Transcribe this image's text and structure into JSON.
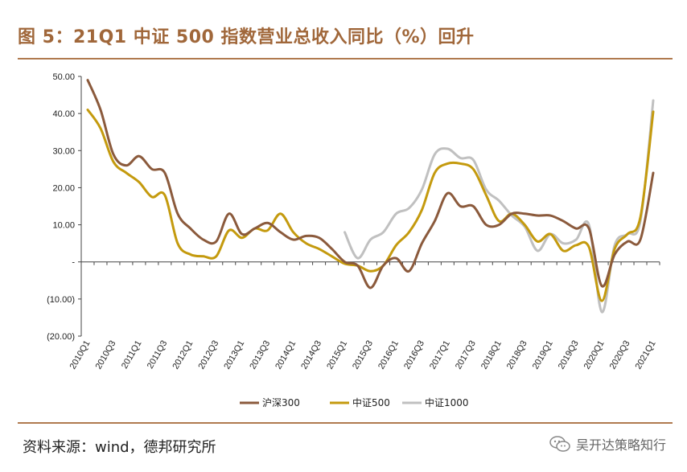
{
  "header": {
    "title": "图 5：21Q1 中证 500 指数营业总收入同比（%）回升"
  },
  "footer": {
    "source": "资料来源：wind，德邦研究所",
    "watermark": "吴开达策略知行"
  },
  "colors": {
    "hs300": "#8b5a3c",
    "zz500": "#c49a0e",
    "zz1000": "#c0c0c0",
    "accent": "#a0673a"
  },
  "chart_data": {
    "type": "line",
    "title": "",
    "xlabel": "",
    "ylabel": "",
    "ylim": [
      -20,
      50
    ],
    "yticks": [
      50,
      40,
      30,
      20,
      10,
      0,
      -10,
      -20
    ],
    "ytick_labels": [
      "50.00",
      "40.00",
      "30.00",
      "20.00",
      "10.00",
      "-",
      "(10.00)",
      "(20.00)"
    ],
    "categories": [
      "2010Q1",
      "2010Q2",
      "2010Q3",
      "2010Q4",
      "2011Q1",
      "2011Q2",
      "2011Q3",
      "2011Q4",
      "2012Q1",
      "2012Q2",
      "2012Q3",
      "2012Q4",
      "2013Q1",
      "2013Q2",
      "2013Q3",
      "2013Q4",
      "2014Q1",
      "2014Q2",
      "2014Q3",
      "2014Q4",
      "2015Q1",
      "2015Q2",
      "2015Q3",
      "2015Q4",
      "2016Q1",
      "2016Q2",
      "2016Q3",
      "2016Q4",
      "2017Q1",
      "2017Q2",
      "2017Q3",
      "2017Q4",
      "2018Q1",
      "2018Q2",
      "2018Q3",
      "2018Q4",
      "2019Q1",
      "2019Q2",
      "2019Q3",
      "2019Q4",
      "2020Q1",
      "2020Q2",
      "2020Q3",
      "2020Q4",
      "2021Q1"
    ],
    "x_tick_labels": [
      "2010Q1",
      "2010Q3",
      "2011Q1",
      "2011Q3",
      "2012Q1",
      "2012Q3",
      "2013Q1",
      "2013Q3",
      "2014Q1",
      "2014Q3",
      "2015Q1",
      "2015Q3",
      "2016Q1",
      "2016Q3",
      "2017Q1",
      "2017Q3",
      "2018Q1",
      "2018Q3",
      "2019Q1",
      "2019Q3",
      "2020Q1",
      "2020Q3",
      "2021Q1"
    ],
    "series": [
      {
        "name": "沪深300",
        "color": "#8b5a3c",
        "values": [
          49,
          41,
          29,
          26,
          28.5,
          25,
          24,
          13,
          9,
          6,
          5.5,
          13,
          7.5,
          9,
          10.5,
          8,
          6,
          7,
          6.5,
          3.5,
          0,
          -1,
          -7,
          -1,
          1,
          -2.5,
          5,
          11,
          18.5,
          15,
          15,
          10,
          10,
          13,
          13,
          12.5,
          12.5,
          11,
          9,
          9,
          -6.5,
          2,
          5.5,
          6,
          24
        ]
      },
      {
        "name": "中证500",
        "color": "#c49a0e",
        "values": [
          41,
          36,
          27,
          24,
          21.5,
          17.5,
          18,
          5,
          2,
          1.5,
          1.5,
          8.5,
          6.5,
          9,
          8.5,
          13,
          8,
          5,
          3.5,
          1.5,
          -0.5,
          -1,
          -2.5,
          -1,
          4.5,
          8,
          14,
          24,
          26.5,
          26.5,
          25,
          18,
          11,
          13,
          10,
          5.5,
          7.5,
          3,
          4.5,
          4,
          -10.5,
          3.5,
          7.5,
          12,
          40.5
        ]
      },
      {
        "name": "中证1000",
        "color": "#c0c0c0",
        "values": [
          null,
          null,
          null,
          null,
          null,
          null,
          null,
          null,
          null,
          null,
          null,
          null,
          null,
          null,
          null,
          null,
          null,
          null,
          null,
          null,
          8,
          1,
          6,
          8,
          13,
          14.5,
          19.5,
          29,
          30.5,
          28,
          27.5,
          19.5,
          16.5,
          12.5,
          9.5,
          3,
          7.5,
          5,
          6,
          10,
          -13.5,
          4.5,
          7.5,
          11,
          43.5
        ]
      }
    ],
    "legend": {
      "position": "bottom-center",
      "entries": [
        "沪深300",
        "中证500",
        "中证1000"
      ]
    }
  }
}
